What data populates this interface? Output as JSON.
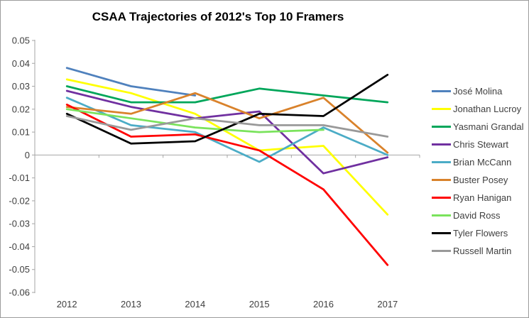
{
  "chart_data": {
    "type": "line",
    "title": "CSAA Trajectories of 2012's Top 10 Framers",
    "xlabel": "",
    "ylabel": "",
    "categories": [
      "2012",
      "2013",
      "2014",
      "2015",
      "2016",
      "2017"
    ],
    "y_axis": {
      "min": -0.06,
      "max": 0.05,
      "step": 0.01,
      "zero_label": "0"
    },
    "grid": "zero-line-only",
    "legend_position": "right",
    "style": {
      "axis_color": "#a6a6a6",
      "label_color": "#3f3f3f",
      "background": "#ffffff",
      "line_width": 2.75
    },
    "series": [
      {
        "name": "José Molina",
        "color": "#4f81bd",
        "values": [
          0.038,
          0.03,
          0.026,
          null,
          null,
          null
        ]
      },
      {
        "name": "Jonathan Lucroy",
        "color": "#ffff00",
        "values": [
          0.033,
          0.027,
          0.018,
          0.002,
          0.004,
          -0.026
        ]
      },
      {
        "name": "Yasmani Grandal",
        "color": "#00a65a",
        "values": [
          0.03,
          0.023,
          0.023,
          0.029,
          0.026,
          0.023
        ]
      },
      {
        "name": "Chris Stewart",
        "color": "#7030a0",
        "values": [
          0.028,
          0.021,
          0.016,
          0.019,
          -0.008,
          -0.001
        ]
      },
      {
        "name": "Brian McCann",
        "color": "#4bacc6",
        "values": [
          0.025,
          0.013,
          0.01,
          -0.003,
          0.012,
          0.0
        ]
      },
      {
        "name": "Buster Posey",
        "color": "#d9822b",
        "values": [
          0.021,
          0.018,
          0.027,
          0.016,
          0.025,
          0.001
        ]
      },
      {
        "name": "Ryan Hanigan",
        "color": "#ff0000",
        "values": [
          0.022,
          0.008,
          0.009,
          0.002,
          -0.015,
          -0.048
        ]
      },
      {
        "name": "David Ross",
        "color": "#7ae35c",
        "values": [
          0.02,
          0.016,
          0.012,
          0.01,
          0.011,
          null
        ]
      },
      {
        "name": "Tyler Flowers",
        "color": "#000000",
        "values": [
          0.018,
          0.005,
          0.006,
          0.018,
          0.017,
          0.035
        ]
      },
      {
        "name": "Russell Martin",
        "color": "#999999",
        "values": [
          0.017,
          0.011,
          0.016,
          0.013,
          0.013,
          0.008
        ]
      }
    ]
  }
}
